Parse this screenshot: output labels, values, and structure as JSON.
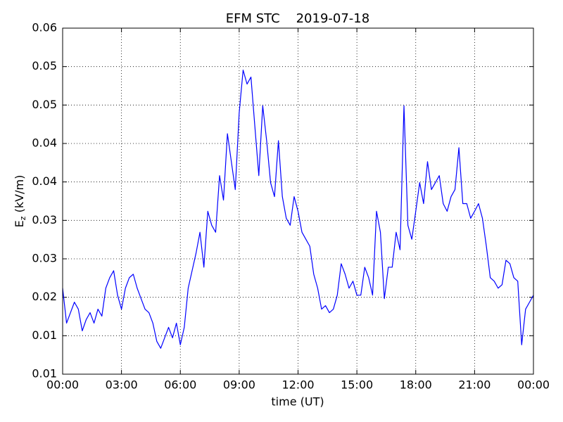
{
  "chart_data": {
    "type": "line",
    "title": "EFM STC    2019-07-18",
    "xlabel": "time (UT)",
    "ylabel": {
      "symbol": "E",
      "subscript": "z",
      "unit": " (kV/m)"
    },
    "x": [
      0,
      0.2,
      0.4,
      0.6,
      0.8,
      1,
      1.2,
      1.4,
      1.6,
      1.8,
      2,
      2.2,
      2.4,
      2.6,
      2.8,
      3,
      3.2,
      3.4,
      3.6,
      3.8,
      4,
      4.2,
      4.4,
      4.6,
      4.8,
      5,
      5.2,
      5.4,
      5.6,
      5.8,
      6,
      6.2,
      6.4,
      6.6,
      6.8,
      7,
      7.2,
      7.4,
      7.6,
      7.8,
      8,
      8.2,
      8.4,
      8.6,
      8.8,
      9,
      9.2,
      9.4,
      9.6,
      9.8,
      10,
      10.2,
      10.4,
      10.6,
      10.8,
      11,
      11.2,
      11.4,
      11.6,
      11.8,
      12,
      12.2,
      12.4,
      12.6,
      12.8,
      13,
      13.2,
      13.4,
      13.6,
      13.8,
      14,
      14.2,
      14.4,
      14.6,
      14.8,
      15,
      15.2,
      15.4,
      15.6,
      15.8,
      16,
      16.2,
      16.4,
      16.6,
      16.8,
      17,
      17.2,
      17.4,
      17.6,
      17.8,
      18,
      18.2,
      18.4,
      18.6,
      18.8,
      19,
      19.2,
      19.4,
      19.6,
      19.8,
      20,
      20.2,
      20.4,
      20.6,
      20.8,
      21,
      21.2,
      21.4,
      21.6,
      21.8,
      22,
      22.2,
      22.4,
      22.6,
      22.8,
      23,
      23.2,
      23.4,
      23.6,
      23.8,
      24
    ],
    "series": [
      {
        "name": "Ez",
        "color": "#0000ff",
        "values": [
          0.0217,
          0.0167,
          0.0182,
          0.0197,
          0.0187,
          0.0156,
          0.0172,
          0.0182,
          0.0167,
          0.0187,
          0.0177,
          0.0217,
          0.0232,
          0.0242,
          0.0207,
          0.0187,
          0.0217,
          0.0232,
          0.0237,
          0.0217,
          0.0202,
          0.0187,
          0.0182,
          0.0167,
          0.0141,
          0.0131,
          0.0146,
          0.0161,
          0.0146,
          0.0167,
          0.0136,
          0.0161,
          0.0217,
          0.0242,
          0.0267,
          0.0297,
          0.0247,
          0.0327,
          0.0307,
          0.0297,
          0.0378,
          0.0343,
          0.0438,
          0.0398,
          0.0358,
          0.0468,
          0.0529,
          0.0509,
          0.0519,
          0.0448,
          0.0378,
          0.0478,
          0.0428,
          0.0368,
          0.0348,
          0.0428,
          0.0348,
          0.0317,
          0.0307,
          0.0348,
          0.0327,
          0.0297,
          0.0287,
          0.0277,
          0.0237,
          0.0217,
          0.0187,
          0.0192,
          0.0182,
          0.0187,
          0.0207,
          0.0252,
          0.0237,
          0.0217,
          0.0227,
          0.0207,
          0.0207,
          0.0247,
          0.0232,
          0.0207,
          0.0327,
          0.0297,
          0.0202,
          0.0247,
          0.0247,
          0.0297,
          0.0272,
          0.0478,
          0.0307,
          0.0287,
          0.0327,
          0.0368,
          0.0338,
          0.0398,
          0.0358,
          0.0368,
          0.0378,
          0.0338,
          0.0327,
          0.0348,
          0.0358,
          0.0418,
          0.0338,
          0.0338,
          0.0317,
          0.0327,
          0.0338,
          0.0317,
          0.0277,
          0.0232,
          0.0227,
          0.0217,
          0.0222,
          0.0257,
          0.0252,
          0.0232,
          0.0227,
          0.0136,
          0.0187,
          0.0197,
          0.0207
        ]
      }
    ],
    "xlim": [
      0,
      24
    ],
    "xticks": [
      {
        "value": 0,
        "label": "00:00"
      },
      {
        "value": 3,
        "label": "03:00"
      },
      {
        "value": 6,
        "label": "06:00"
      },
      {
        "value": 9,
        "label": "09:00"
      },
      {
        "value": 12,
        "label": "12:00"
      },
      {
        "value": 15,
        "label": "15:00"
      },
      {
        "value": 18,
        "label": "18:00"
      },
      {
        "value": 21,
        "label": "21:00"
      },
      {
        "value": 24,
        "label": "00:00"
      }
    ],
    "ylim": [
      0.0094,
      0.0589
    ],
    "yticks": [
      {
        "value": 0.0094,
        "label": "0.01"
      },
      {
        "value": 0.0149,
        "label": "0.01"
      },
      {
        "value": 0.0204,
        "label": "0.02"
      },
      {
        "value": 0.0259,
        "label": "0.03"
      },
      {
        "value": 0.0314,
        "label": "0.03"
      },
      {
        "value": 0.0369,
        "label": "0.04"
      },
      {
        "value": 0.0424,
        "label": "0.04"
      },
      {
        "value": 0.0479,
        "label": "0.05"
      },
      {
        "value": 0.0534,
        "label": "0.05"
      },
      {
        "value": 0.0589,
        "label": "0.06"
      }
    ],
    "grid": true
  }
}
